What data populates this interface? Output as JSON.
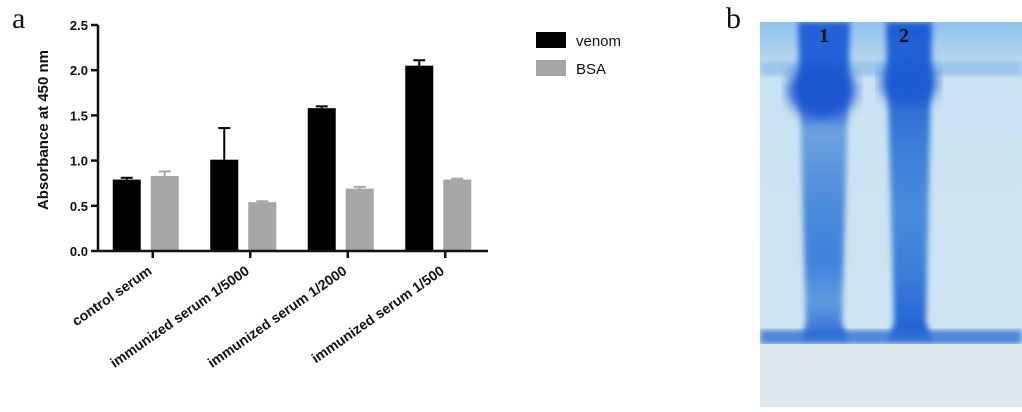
{
  "panel_a_letter": "a",
  "panel_b_letter": "b",
  "chart_data": {
    "type": "bar",
    "ylabel": "Absorbance at 450 nm",
    "xlabel": "",
    "ylim": [
      0,
      2.5
    ],
    "yticks": [
      "0.0",
      "0.5",
      "1.0",
      "1.5",
      "2.0",
      "2.5"
    ],
    "categories": [
      "control serum",
      "immunized serum 1/5000",
      "immunized serum 1/2000",
      "immunized serum 1/500"
    ],
    "series": [
      {
        "name": "venom",
        "color": "#000000",
        "values": [
          0.79,
          1.01,
          1.58,
          2.05
        ],
        "error": [
          0.02,
          0.35,
          0.02,
          0.06
        ]
      },
      {
        "name": "BSA",
        "color": "#a6a6a6",
        "values": [
          0.83,
          0.54,
          0.69,
          0.79
        ],
        "error": [
          0.05,
          0.01,
          0.02,
          0.01
        ]
      }
    ],
    "legend_position": "top-right"
  },
  "gel": {
    "lane_labels": [
      "1",
      "2"
    ],
    "colors": {
      "background": "#c8e0ef",
      "band": "#1e5fd0"
    }
  }
}
